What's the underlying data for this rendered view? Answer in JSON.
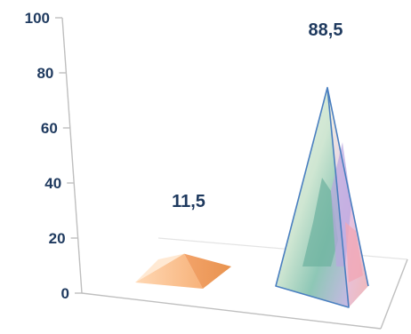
{
  "chart_data": {
    "type": "bar",
    "bar_shape": "pyramid-3d",
    "categories": [
      "",
      ""
    ],
    "values": [
      11.5,
      88.5
    ],
    "value_labels": [
      "11,5",
      "88,5"
    ],
    "title": "",
    "xlabel": "",
    "ylabel": "",
    "ylim": [
      0,
      100
    ],
    "yticks": [
      "0",
      "20",
      "40",
      "60",
      "80",
      "100"
    ],
    "grid": false,
    "legend": "none",
    "colors": {
      "pyramid_1": "#f7b27a",
      "pyramid_2_outline": "#4a7fc0",
      "text": "#1f3a5f",
      "axis": "#bfbfbf"
    }
  }
}
